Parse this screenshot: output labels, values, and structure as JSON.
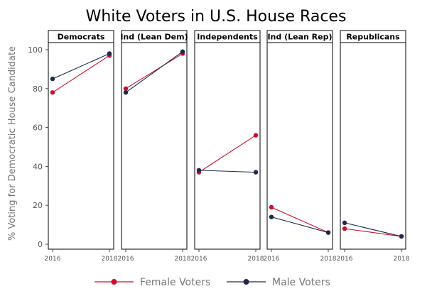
{
  "chart_data": {
    "type": "line",
    "title": "White Voters in U.S. House Races",
    "ylabel": "% Voting for Democratic House Candidate",
    "xlabel": "",
    "ylim": [
      0,
      100
    ],
    "yticks": [
      "0",
      "20",
      "40",
      "60",
      "80",
      "100"
    ],
    "x": [
      "2016",
      "2018"
    ],
    "panels": [
      {
        "label": "Democrats",
        "series": [
          {
            "name": "Female Voters",
            "values": [
              78,
              97
            ]
          },
          {
            "name": "Male Voters",
            "values": [
              85,
              98
            ]
          }
        ]
      },
      {
        "label": "Ind (Lean Dem)",
        "series": [
          {
            "name": "Female Voters",
            "values": [
              80,
              98
            ]
          },
          {
            "name": "Male Voters",
            "values": [
              78,
              99
            ]
          }
        ]
      },
      {
        "label": "Independents",
        "series": [
          {
            "name": "Female Voters",
            "values": [
              37,
              56
            ]
          },
          {
            "name": "Male Voters",
            "values": [
              38,
              37
            ]
          }
        ]
      },
      {
        "label": "Ind (Lean Rep)",
        "series": [
          {
            "name": "Female Voters",
            "values": [
              19,
              6
            ]
          },
          {
            "name": "Male Voters",
            "values": [
              14,
              6
            ]
          }
        ]
      },
      {
        "label": "Republicans",
        "series": [
          {
            "name": "Female Voters",
            "values": [
              8,
              4
            ]
          },
          {
            "name": "Male Voters",
            "values": [
              11,
              4
            ]
          }
        ]
      }
    ],
    "legend": {
      "position": "bottom",
      "items": [
        {
          "name": "Female Voters",
          "color": "#c8102e"
        },
        {
          "name": "Male Voters",
          "color": "#1f2a4a"
        }
      ]
    },
    "grid": false
  }
}
